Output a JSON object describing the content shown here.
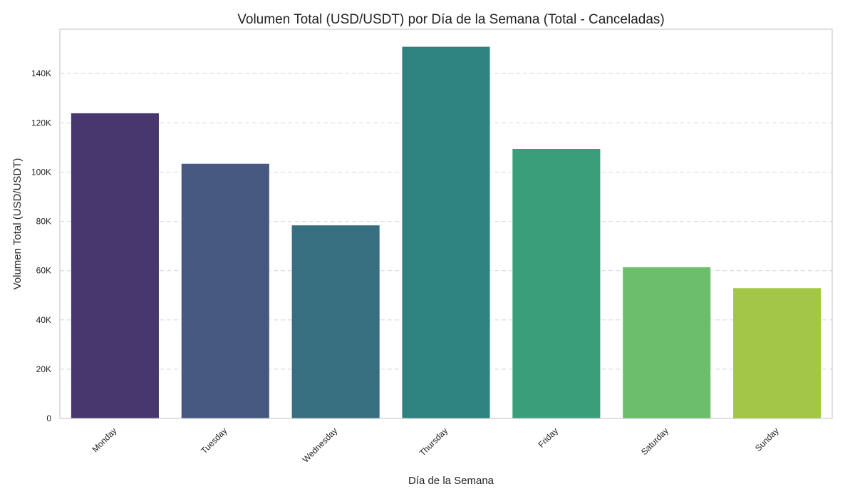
{
  "chart_data": {
    "type": "bar",
    "title": "Volumen Total (USD/USDT) por Día de la Semana (Total - Canceladas)",
    "xlabel": "Día de la Semana",
    "ylabel": "Volumen Total (USD/USDT)",
    "categories": [
      "Monday",
      "Tuesday",
      "Wednesday",
      "Thursday",
      "Friday",
      "Saturday",
      "Sunday"
    ],
    "values": [
      124000,
      103500,
      78500,
      151000,
      109500,
      61500,
      53000
    ],
    "colors": [
      "#48366f",
      "#46587f",
      "#376f80",
      "#2f837e",
      "#399f7b",
      "#6cbd6c",
      "#a2c646"
    ],
    "ylim": [
      0,
      158000
    ],
    "yticks": [
      0,
      20000,
      40000,
      60000,
      80000,
      100000,
      120000,
      140000
    ],
    "ytick_labels": [
      "0",
      "20K",
      "40K",
      "60K",
      "80K",
      "100K",
      "120K",
      "140K"
    ],
    "grid": "y-dashed",
    "legend": "none"
  }
}
